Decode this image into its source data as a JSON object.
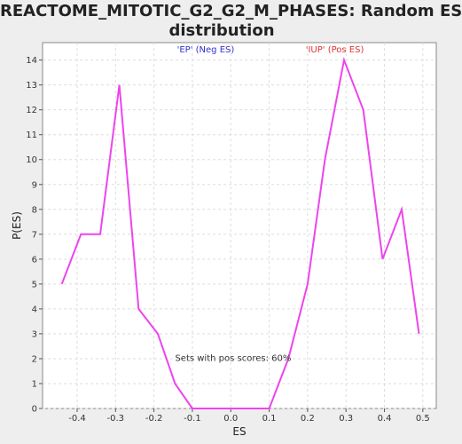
{
  "chart_data": {
    "type": "line",
    "title_lines": [
      "REACTOME_MITOTIC_G2_G2_M_PHASES: Random ES",
      "distribution"
    ],
    "xlabel": "ES",
    "ylabel": "P(ES)",
    "xlim": [
      -0.49,
      0.535
    ],
    "ylim": [
      0,
      14.7
    ],
    "x_ticks": [
      -0.4,
      -0.3,
      -0.2,
      -0.1,
      0.0,
      0.1,
      0.2,
      0.3,
      0.4,
      0.5
    ],
    "x_tick_labels": [
      "-0.4",
      "-0.3",
      "-0.2",
      "-0.1",
      "0.0",
      "0.1",
      "0.2",
      "0.3",
      "0.4",
      "0.5"
    ],
    "y_ticks": [
      0,
      1,
      2,
      3,
      4,
      5,
      6,
      7,
      8,
      9,
      10,
      11,
      12,
      13,
      14
    ],
    "y_tick_labels": [
      "0",
      "1",
      "2",
      "3",
      "4",
      "5",
      "6",
      "7",
      "8",
      "9",
      "10",
      "11",
      "12",
      "13",
      "14"
    ],
    "grid": true,
    "line_color": "#ee44ee",
    "series": [
      {
        "x": [
          -0.44,
          -0.39,
          -0.34,
          -0.29,
          -0.24,
          -0.19,
          -0.145,
          -0.1,
          -0.05,
          0.0,
          0.05,
          0.1,
          0.15,
          0.2,
          0.245,
          0.295,
          0.345,
          0.395,
          0.445,
          0.49
        ],
        "values": [
          5,
          7,
          7,
          13,
          4,
          3,
          1,
          0,
          0,
          0,
          0,
          0,
          2,
          5,
          10,
          14,
          12,
          6,
          8,
          3
        ]
      }
    ],
    "annotations": [
      {
        "text": "'EP' (Neg ES)",
        "color": "#3333cc",
        "x": -0.14,
        "y": 14.3
      },
      {
        "text": "'IUP' (Pos ES)",
        "color": "#dd3333",
        "x": 0.195,
        "y": 14.3
      },
      {
        "text": "Sets with pos scores: 60%",
        "color": "#333333",
        "x": -0.145,
        "y": 1.9
      }
    ]
  }
}
